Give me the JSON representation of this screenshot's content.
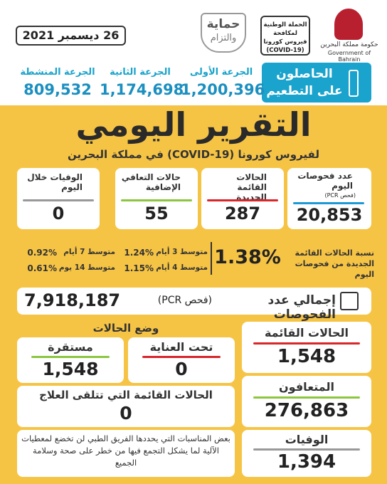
{
  "header": {
    "date": "26 ديسمبر 2021",
    "logo": {
      "line1": "حماية",
      "line2": "والتزام"
    },
    "campaign": "الحملة الوطنية لمكافحة فيروس كورونا (COVID-19)",
    "government_ar": "حكومة مملكة البحرين",
    "government_en": "Government of Bahrain"
  },
  "vaccination": {
    "title": "الحاصلون على التطعيم",
    "doses": [
      {
        "label": "الجرعة الأولى",
        "value": "1,200,396"
      },
      {
        "label": "الجرعة الثانية",
        "value": "1,174,698"
      },
      {
        "label": "الجرعة المنشطة",
        "value": "809,532"
      }
    ]
  },
  "report": {
    "title": "التقرير اليومي",
    "subtitle": "لفيروس كورونا (COVID-19) في مملكة البحرين"
  },
  "daily": {
    "cards": [
      {
        "label": "عدد فحوصات اليوم",
        "note": "(فحص PCR)",
        "value": "20,853"
      },
      {
        "label": "الحالات القائمة الجديدة",
        "value": "287"
      },
      {
        "label": "حالات التعافي الإضافية",
        "value": "55"
      },
      {
        "label": "الوفيات خلال اليوم",
        "value": "0"
      }
    ]
  },
  "ratio": {
    "label": "نسبة الحالات القائمة الجديدة من فحوصات اليوم",
    "value": "1.38%",
    "averages": [
      {
        "label": "متوسط 3 أيام",
        "value": "1.24%"
      },
      {
        "label": "متوسط 4 أيام",
        "value": "1.15%"
      },
      {
        "label": "متوسط 7 أيام",
        "value": "0.92%"
      },
      {
        "label": "متوسط 14 يوم",
        "value": "0.61%"
      }
    ]
  },
  "total_tests": {
    "label": "إجمالي عدد الفحوصات",
    "note": "(فحص PCR)",
    "value": "7,918,187"
  },
  "totals": [
    {
      "label": "الحالات القائمة",
      "value": "1,548"
    },
    {
      "label": "المتعافون",
      "value": "276,863"
    },
    {
      "label": "الوفيات",
      "value": "1,394"
    }
  ],
  "case_status": {
    "title": "وضع الحالات",
    "items": [
      {
        "label": "تحت العناية",
        "value": "0"
      },
      {
        "label": "مستقرة",
        "value": "1,548"
      }
    ],
    "treatment": {
      "label": "الحالات القائمة التي تتلقى العلاج",
      "value": "0"
    },
    "note": "بعض المناسبات التي يحددها الفريق الطبي لن تخضع لمعطيات الآلية لما يشكل التجمع فيها من خطر على صحة وسلامة الجميع"
  }
}
